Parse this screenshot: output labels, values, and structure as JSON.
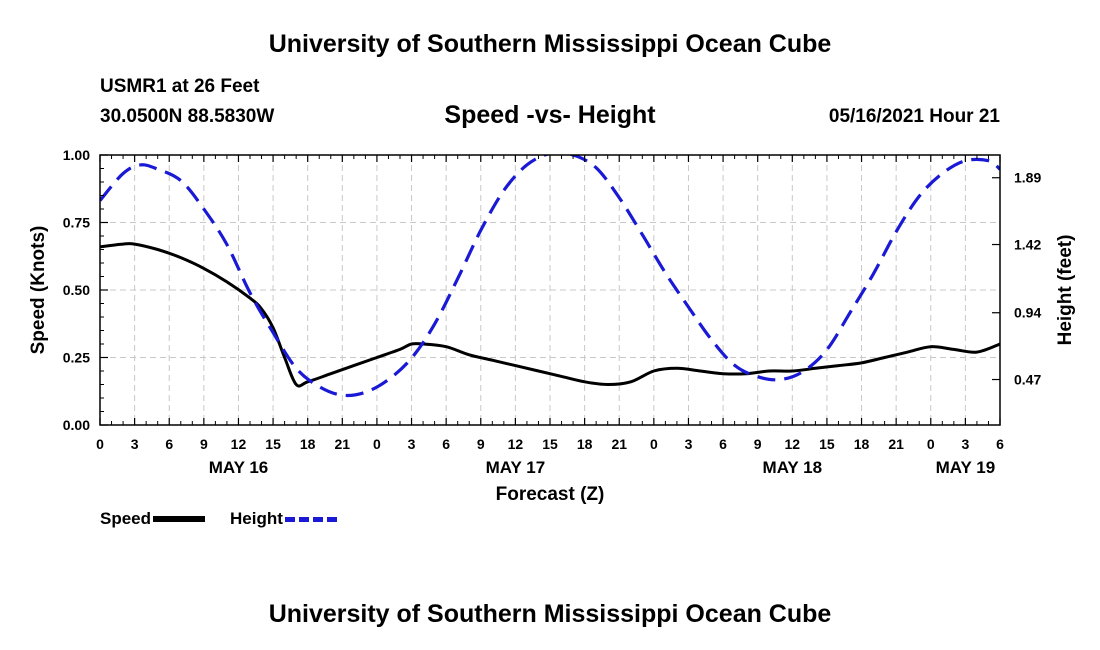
{
  "header": {
    "top_title": "University of Southern Mississippi Ocean Cube",
    "station": "USMR1 at 26 Feet",
    "coordinates": "30.0500N  88.5830W",
    "datetime": "05/16/2021 Hour 21"
  },
  "footer": {
    "bottom_title": "University of Southern Mississippi Ocean Cube"
  },
  "legend": {
    "speed_label": "Speed",
    "height_label": "Height"
  },
  "colors": {
    "speed": "#000000",
    "height": "#1a1ad6",
    "grid": "#c8c8c8"
  },
  "chart_data": {
    "type": "line",
    "title": "Speed -vs- Height",
    "xlabel": "Forecast (Z)",
    "ylabel": "Speed (Knots)",
    "y2label": "Height (feet)",
    "x_unit": "hours since MAY 16 00Z",
    "xlim": [
      0,
      78
    ],
    "ylim": [
      0,
      1.0
    ],
    "y2lim": [
      0.15,
      2.05
    ],
    "yticks": [
      0.0,
      0.25,
      0.5,
      0.75,
      1.0
    ],
    "ytick_labels": [
      "0.00",
      "0.25",
      "0.50",
      "0.75",
      "1.00"
    ],
    "y2ticks": [
      0.47,
      0.94,
      1.42,
      1.89
    ],
    "y2tick_labels": [
      "0.47",
      "0.94",
      "1.42",
      "1.89"
    ],
    "xticks": [
      0,
      3,
      6,
      9,
      12,
      15,
      18,
      21,
      24,
      27,
      30,
      33,
      36,
      39,
      42,
      45,
      48,
      51,
      54,
      57,
      60,
      63,
      66,
      69,
      72,
      75,
      78
    ],
    "xtick_labels": [
      "0",
      "3",
      "6",
      "9",
      "12",
      "15",
      "18",
      "21",
      "0",
      "3",
      "6",
      "9",
      "12",
      "15",
      "18",
      "21",
      "0",
      "3",
      "6",
      "9",
      "12",
      "15",
      "18",
      "21",
      "0",
      "3",
      "6"
    ],
    "day_labels": [
      {
        "label": "MAY 16",
        "x": 12
      },
      {
        "label": "MAY 17",
        "x": 36
      },
      {
        "label": "MAY 18",
        "x": 60
      },
      {
        "label": "MAY 19",
        "x": 75
      }
    ],
    "grid": true,
    "series": [
      {
        "name": "Speed",
        "axis": "left",
        "style": "solid",
        "x": [
          0,
          2,
          3,
          5,
          7,
          9,
          11,
          13,
          14,
          15,
          16,
          17,
          18,
          20,
          22,
          24,
          26,
          27,
          28,
          30,
          32,
          34,
          36,
          38,
          40,
          42,
          44,
          46,
          48,
          50,
          52,
          54,
          56,
          58,
          60,
          62,
          64,
          66,
          68,
          70,
          72,
          74,
          76,
          78
        ],
        "y": [
          0.66,
          0.67,
          0.67,
          0.65,
          0.62,
          0.58,
          0.53,
          0.47,
          0.43,
          0.36,
          0.25,
          0.15,
          0.16,
          0.19,
          0.22,
          0.25,
          0.28,
          0.3,
          0.3,
          0.29,
          0.26,
          0.24,
          0.22,
          0.2,
          0.18,
          0.16,
          0.15,
          0.16,
          0.2,
          0.21,
          0.2,
          0.19,
          0.19,
          0.2,
          0.2,
          0.21,
          0.22,
          0.23,
          0.25,
          0.27,
          0.29,
          0.28,
          0.27,
          0.3
        ]
      },
      {
        "name": "Height",
        "axis": "right",
        "style": "dashed",
        "x": [
          0,
          2,
          3.5,
          5,
          7,
          9,
          11,
          13,
          15,
          17,
          19,
          21,
          23,
          25,
          27,
          29,
          31,
          33,
          35,
          37,
          39,
          41,
          43,
          45,
          47,
          49,
          51,
          53,
          55,
          57,
          59,
          61,
          63,
          65,
          67,
          69,
          71,
          73,
          75,
          77,
          78
        ],
        "y": [
          1.73,
          1.92,
          1.98,
          1.95,
          1.87,
          1.67,
          1.42,
          1.08,
          0.8,
          0.55,
          0.42,
          0.36,
          0.38,
          0.47,
          0.62,
          0.86,
          1.18,
          1.52,
          1.8,
          1.98,
          2.06,
          2.05,
          1.96,
          1.75,
          1.49,
          1.22,
          0.98,
          0.75,
          0.57,
          0.49,
          0.47,
          0.53,
          0.68,
          0.94,
          1.21,
          1.51,
          1.76,
          1.92,
          2.01,
          2.01,
          1.95
        ]
      }
    ]
  }
}
